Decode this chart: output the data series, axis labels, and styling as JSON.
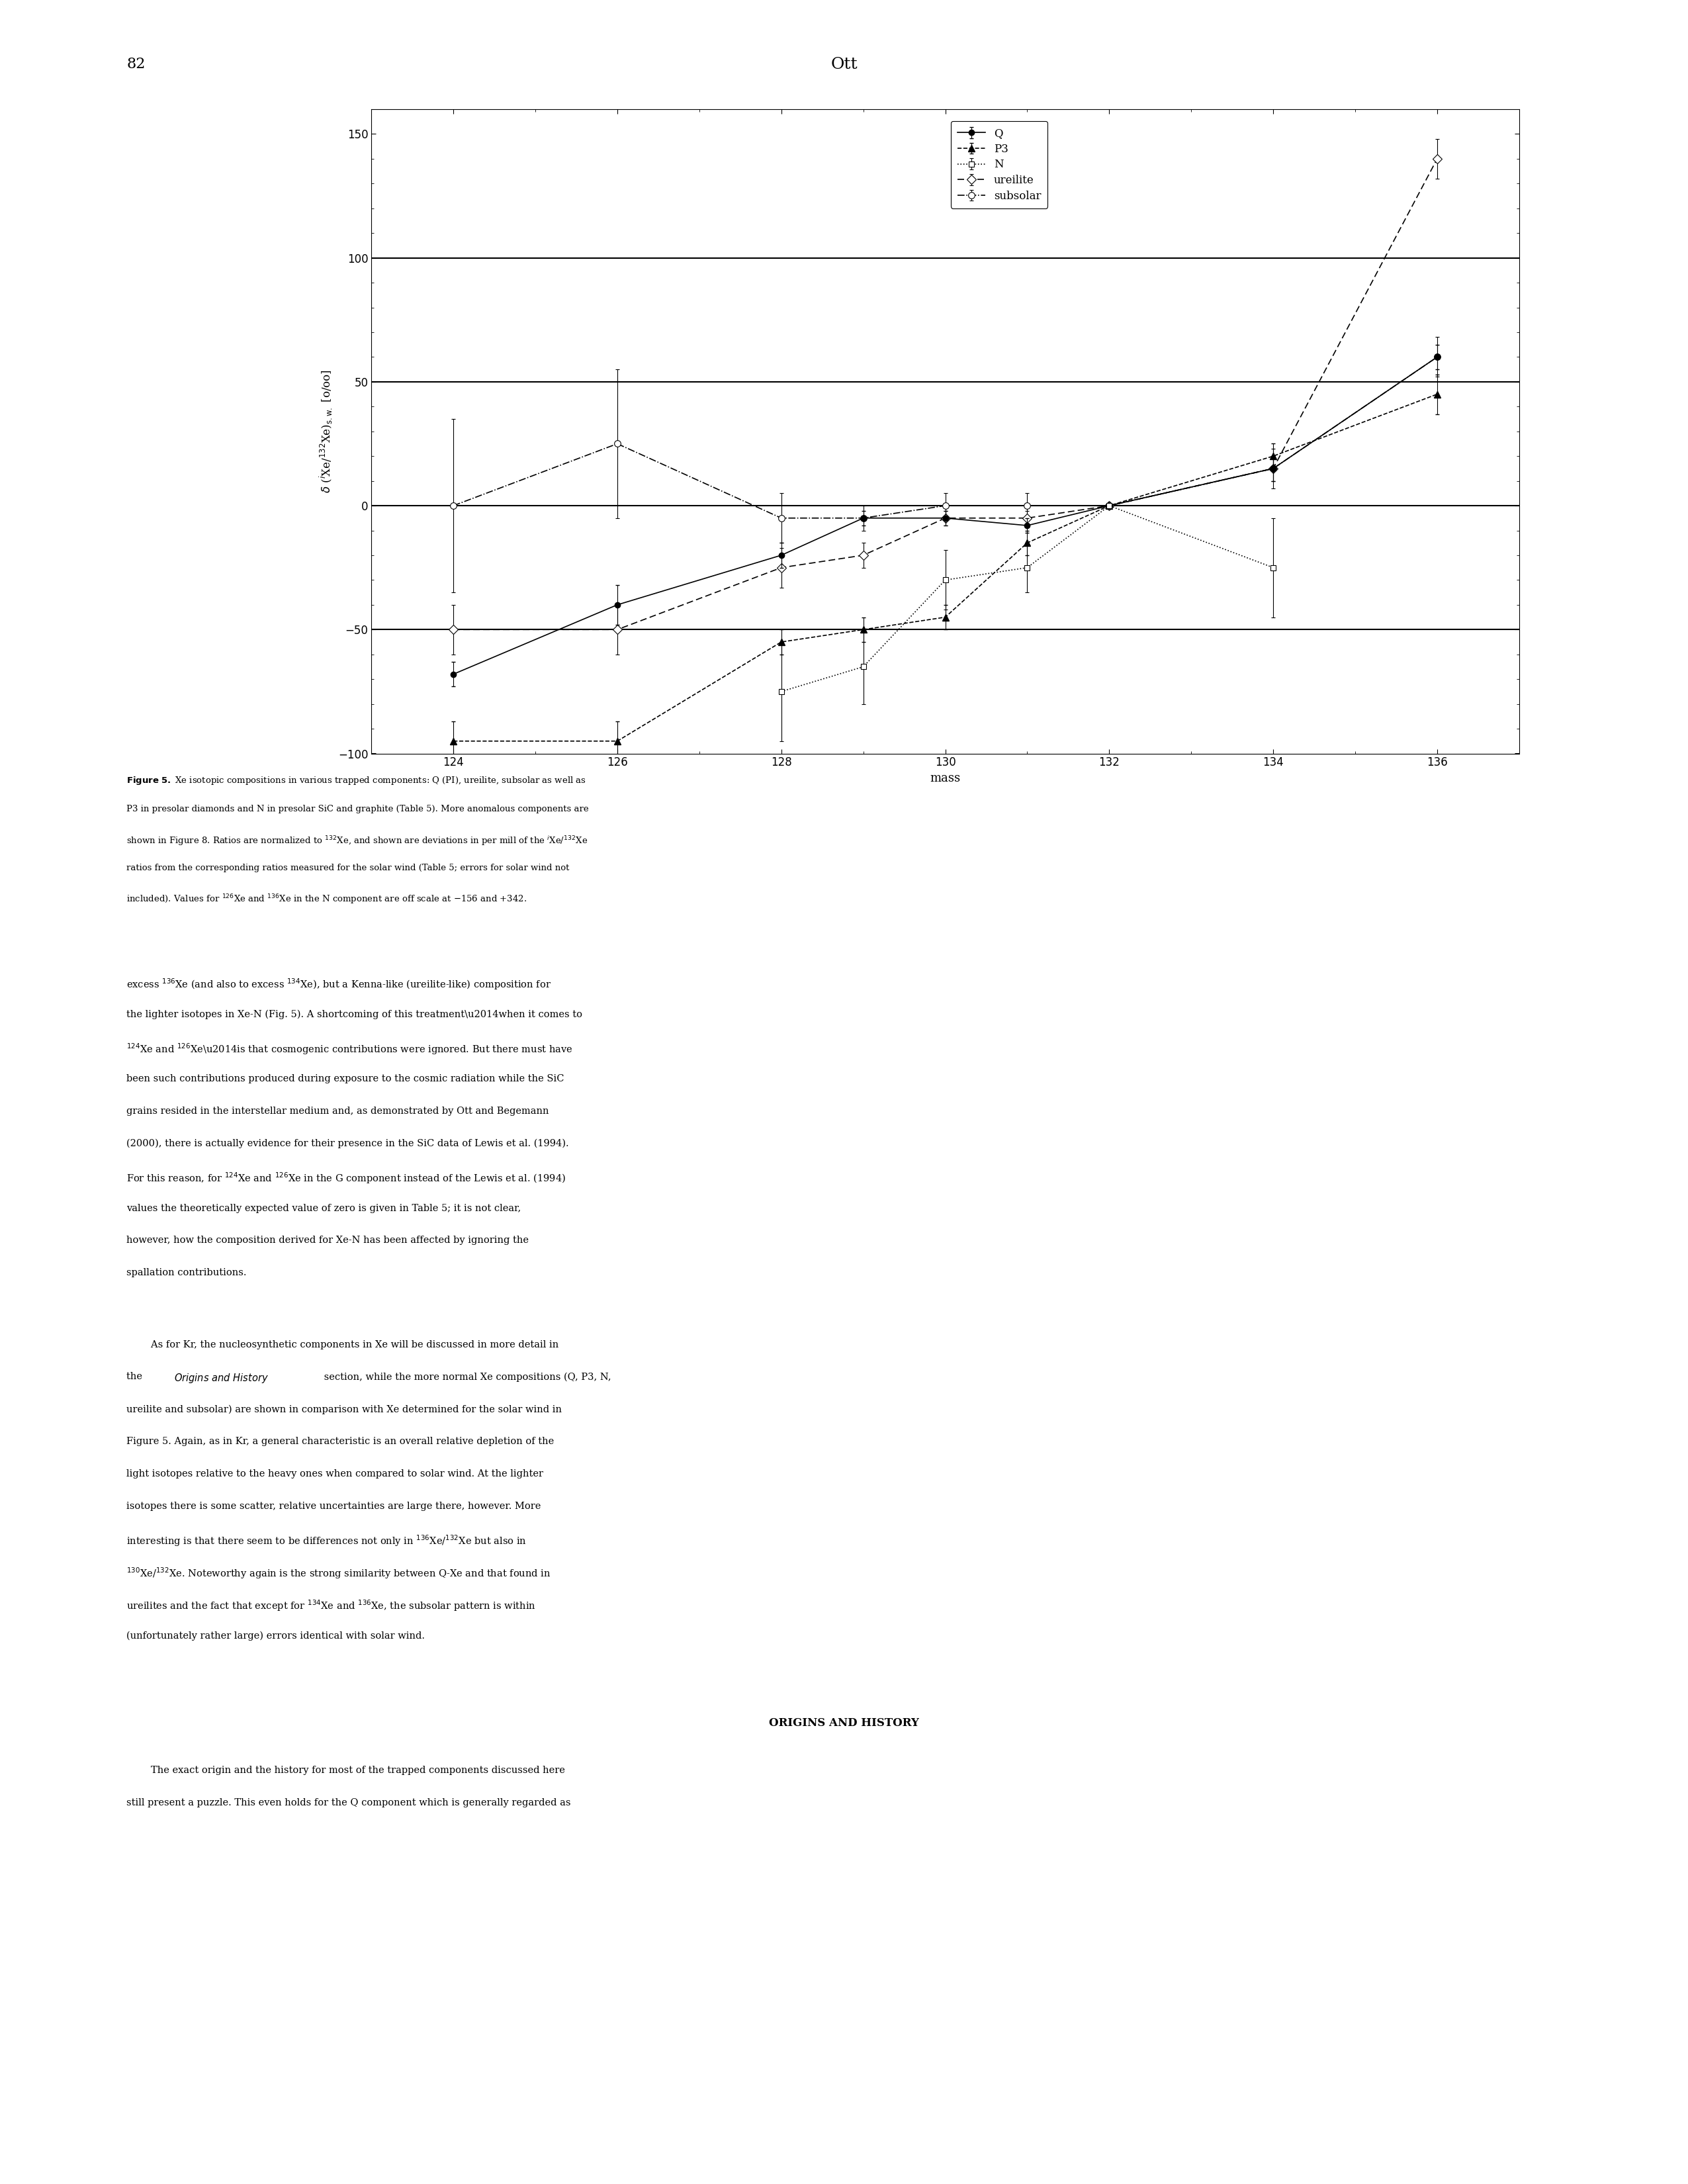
{
  "title_page": "82",
  "title_center": "Ott",
  "xlabel": "mass",
  "xlim": [
    123,
    137
  ],
  "ylim": [
    -100,
    160
  ],
  "xticks": [
    124,
    126,
    128,
    130,
    132,
    134,
    136
  ],
  "yticks": [
    -100,
    -50,
    0,
    50,
    100,
    150
  ],
  "Q": {
    "x": [
      124,
      126,
      128,
      129,
      130,
      131,
      132,
      134,
      136
    ],
    "y": [
      -68,
      -40,
      -20,
      -5,
      -5,
      -8,
      0,
      15,
      60
    ],
    "yerr": [
      5,
      8,
      5,
      3,
      3,
      3,
      0,
      5,
      5
    ]
  },
  "P3": {
    "x": [
      124,
      126,
      128,
      129,
      130,
      131,
      132,
      134,
      136
    ],
    "y": [
      -95,
      -95,
      -55,
      -50,
      -45,
      -15,
      0,
      20,
      45
    ],
    "yerr": [
      8,
      8,
      5,
      5,
      5,
      5,
      0,
      5,
      8
    ]
  },
  "N": {
    "x": [
      128,
      129,
      130,
      131,
      132,
      134
    ],
    "y": [
      -75,
      -65,
      -30,
      -25,
      0,
      -25
    ],
    "yerr": [
      20,
      15,
      12,
      10,
      0,
      20
    ]
  },
  "ureilite": {
    "x": [
      124,
      126,
      128,
      129,
      130,
      131,
      132,
      134,
      136
    ],
    "y": [
      -50,
      -50,
      -25,
      -20,
      -5,
      -5,
      0,
      15,
      140
    ],
    "yerr": [
      10,
      10,
      8,
      5,
      3,
      3,
      0,
      5,
      8
    ]
  },
  "subsolar": {
    "x": [
      124,
      126,
      128,
      129,
      130,
      131,
      132,
      134,
      136
    ],
    "y": [
      0,
      25,
      -5,
      -5,
      0,
      0,
      0,
      15,
      60
    ],
    "yerr": [
      35,
      30,
      10,
      5,
      5,
      5,
      0,
      8,
      8
    ]
  }
}
